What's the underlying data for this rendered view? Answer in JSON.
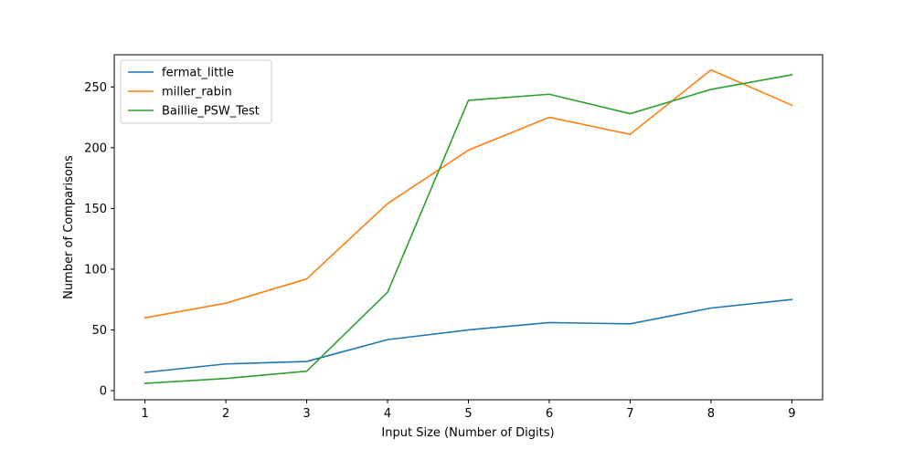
{
  "chart_data": {
    "type": "line",
    "title": "",
    "xlabel": "Input Size (Number of Digits)",
    "ylabel": "Number of Comparisons",
    "x": [
      1,
      2,
      3,
      4,
      5,
      6,
      7,
      8,
      9
    ],
    "xticks": [
      "1",
      "2",
      "3",
      "4",
      "5",
      "6",
      "7",
      "8",
      "9"
    ],
    "yticks": [
      "0",
      "50",
      "100",
      "150",
      "200",
      "250"
    ],
    "xlim": [
      0.62,
      9.38
    ],
    "ylim": [
      -7.5,
      276.5
    ],
    "grid": false,
    "legend": "upper-left",
    "series": [
      {
        "name": "fermat_little",
        "color": "#1f77b4",
        "values": [
          15,
          22,
          24,
          42,
          50,
          56,
          55,
          68,
          75
        ]
      },
      {
        "name": "miller_rabin",
        "color": "#ff7f0e",
        "values": [
          60,
          72,
          92,
          154,
          198,
          225,
          211,
          264,
          235
        ]
      },
      {
        "name": "Baillie_PSW_Test",
        "color": "#2ca02c",
        "values": [
          6,
          10,
          16,
          81,
          239,
          244,
          228,
          248,
          260
        ]
      }
    ]
  }
}
